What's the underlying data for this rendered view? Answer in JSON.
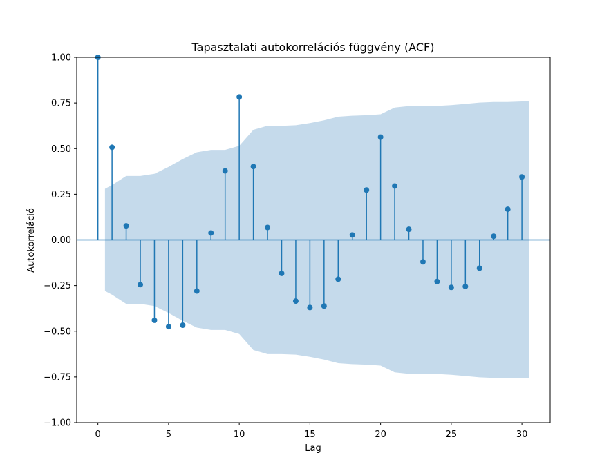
{
  "chart_data": {
    "type": "stem",
    "title": "Tapasztalati autokorrelációs függvény (ACF)",
    "xlabel": "Lag",
    "ylabel": "Autokorreláció",
    "xlim": [
      -1.5,
      32
    ],
    "ylim": [
      -1.0,
      1.0
    ],
    "xticks": [
      0,
      5,
      10,
      15,
      20,
      25,
      30
    ],
    "yticks": [
      -1.0,
      -0.75,
      -0.5,
      -0.25,
      0.0,
      0.25,
      0.5,
      0.75,
      1.0
    ],
    "ytick_labels": [
      "−1.00",
      "−0.75",
      "−0.50",
      "−0.25",
      "0.00",
      "0.25",
      "0.50",
      "0.75",
      "1.00"
    ],
    "xtick_labels": [
      "0",
      "5",
      "10",
      "15",
      "20",
      "25",
      "30"
    ],
    "colors": {
      "stem": "#1f77b4",
      "band": "#c5daeb"
    },
    "lags": [
      0,
      1,
      2,
      3,
      4,
      5,
      6,
      7,
      8,
      9,
      10,
      11,
      12,
      13,
      14,
      15,
      16,
      17,
      18,
      19,
      20,
      21,
      22,
      23,
      24,
      25,
      26,
      27,
      28,
      29,
      30
    ],
    "values": [
      1.0,
      0.507,
      0.077,
      -0.245,
      -0.44,
      -0.475,
      -0.467,
      -0.28,
      0.038,
      0.378,
      0.783,
      0.402,
      0.068,
      -0.183,
      -0.335,
      -0.37,
      -0.362,
      -0.215,
      0.027,
      0.273,
      0.563,
      0.295,
      0.058,
      -0.12,
      -0.228,
      -0.26,
      -0.255,
      -0.155,
      0.02,
      0.168,
      0.345
    ],
    "confidence_band": {
      "x": [
        0.5,
        1,
        2,
        3,
        4,
        5,
        6,
        7,
        8,
        9,
        10,
        11,
        12,
        13,
        14,
        15,
        16,
        17,
        18,
        19,
        20,
        21,
        22,
        23,
        24,
        25,
        26,
        27,
        28,
        29,
        30,
        30.5
      ],
      "upper": [
        0.28,
        0.3,
        0.35,
        0.35,
        0.362,
        0.4,
        0.443,
        0.48,
        0.493,
        0.493,
        0.515,
        0.603,
        0.625,
        0.625,
        0.628,
        0.64,
        0.655,
        0.675,
        0.68,
        0.683,
        0.688,
        0.725,
        0.733,
        0.733,
        0.734,
        0.738,
        0.745,
        0.752,
        0.755,
        0.755,
        0.758,
        0.758
      ],
      "lower": [
        -0.28,
        -0.3,
        -0.35,
        -0.35,
        -0.362,
        -0.4,
        -0.443,
        -0.48,
        -0.493,
        -0.493,
        -0.515,
        -0.603,
        -0.625,
        -0.625,
        -0.628,
        -0.64,
        -0.655,
        -0.675,
        -0.68,
        -0.683,
        -0.688,
        -0.725,
        -0.733,
        -0.733,
        -0.734,
        -0.738,
        -0.745,
        -0.752,
        -0.755,
        -0.755,
        -0.758,
        -0.758
      ]
    }
  }
}
